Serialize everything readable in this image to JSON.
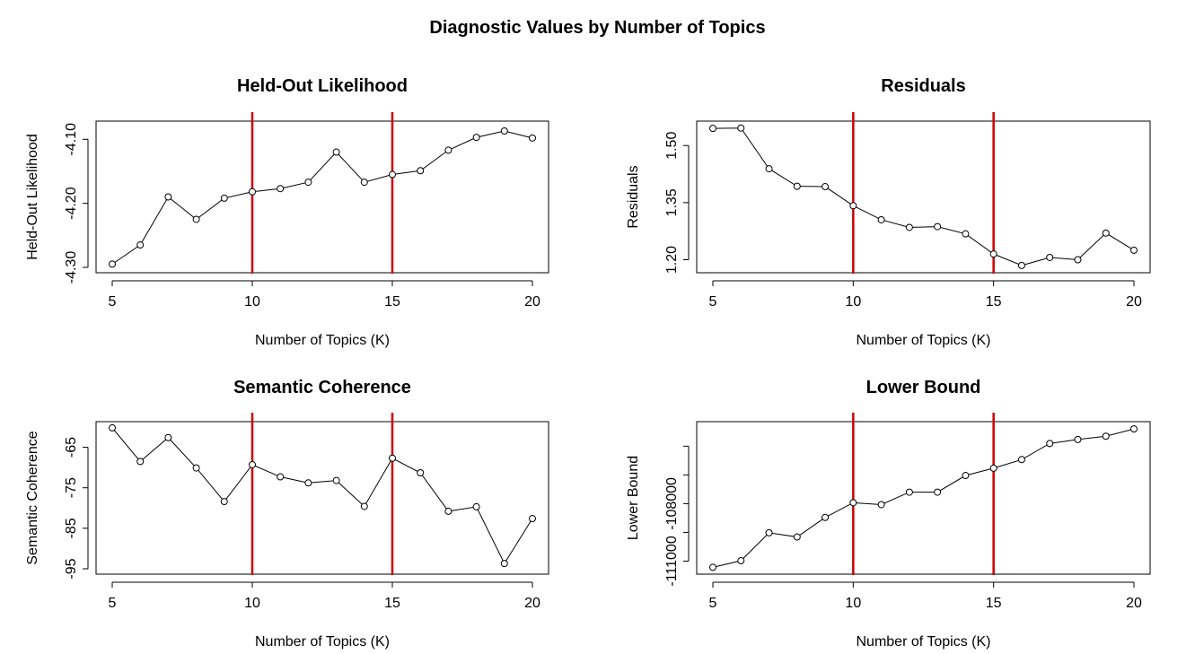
{
  "figure": {
    "title": "Diagnostic Values by Number of Topics"
  },
  "chart_data": [
    {
      "type": "line",
      "title": "Held-Out Likelihood",
      "xlabel": "Number of Topics (K)",
      "ylabel": "Held-Out Likelihood",
      "x": [
        5,
        6,
        7,
        8,
        9,
        10,
        11,
        12,
        13,
        14,
        15,
        16,
        17,
        18,
        19,
        20
      ],
      "series": [
        {
          "values": [
            -4.295,
            -4.265,
            -4.19,
            -4.225,
            -4.192,
            -4.182,
            -4.177,
            -4.167,
            -4.12,
            -4.167,
            -4.155,
            -4.149,
            -4.117,
            -4.097,
            -4.087,
            -4.098
          ]
        }
      ],
      "xlim": [
        5,
        20
      ],
      "ylim": [
        -4.3,
        -4.08
      ],
      "xticks": [
        5,
        10,
        15,
        20
      ],
      "xtick_labels": [
        "5",
        "10",
        "15",
        "20"
      ],
      "yticks": [
        -4.3,
        -4.2,
        -4.1
      ],
      "ytick_labels": [
        "-4.30",
        "-4.20",
        "-4.10"
      ],
      "vlines": [
        10,
        15
      ],
      "vline_color": "#cc0000",
      "line_color": "#000000"
    },
    {
      "type": "line",
      "title": "Residuals",
      "xlabel": "Number of Topics (K)",
      "ylabel": "Residuals",
      "x": [
        5,
        6,
        7,
        8,
        9,
        10,
        11,
        12,
        13,
        14,
        15,
        16,
        17,
        18,
        19,
        20
      ],
      "series": [
        {
          "values": [
            1.545,
            1.546,
            1.439,
            1.393,
            1.392,
            1.342,
            1.305,
            1.285,
            1.287,
            1.268,
            1.215,
            1.185,
            1.206,
            1.2,
            1.27,
            1.225
          ]
        }
      ],
      "xlim": [
        5,
        20
      ],
      "ylim": [
        1.18,
        1.55
      ],
      "xticks": [
        5,
        10,
        15,
        20
      ],
      "xtick_labels": [
        "5",
        "10",
        "15",
        "20"
      ],
      "yticks": [
        1.2,
        1.35,
        1.5
      ],
      "ytick_labels": [
        "1.20",
        "1.35",
        "1.50"
      ],
      "vlines": [
        10,
        15
      ],
      "vline_color": "#cc0000",
      "line_color": "#000000"
    },
    {
      "type": "line",
      "title": "Semantic Coherence",
      "xlabel": "Number of Topics (K)",
      "ylabel": "Semantic Coherence",
      "x": [
        5,
        6,
        7,
        8,
        9,
        10,
        11,
        12,
        13,
        14,
        15,
        16,
        17,
        18,
        19,
        20
      ],
      "series": [
        {
          "values": [
            -60.2,
            -68.5,
            -62.6,
            -70.1,
            -78.4,
            -69.3,
            -72.3,
            -73.8,
            -73.2,
            -79.6,
            -67.7,
            -71.3,
            -80.8,
            -79.7,
            -93.7,
            -82.6
          ]
        }
      ],
      "xlim": [
        5,
        20
      ],
      "ylim": [
        -95,
        -60
      ],
      "xticks": [
        5,
        10,
        15,
        20
      ],
      "xtick_labels": [
        "5",
        "10",
        "15",
        "20"
      ],
      "yticks": [
        -95,
        -85,
        -75,
        -65
      ],
      "ytick_labels": [
        "-95",
        "-85",
        "-75",
        "-65"
      ],
      "vlines": [
        10,
        15
      ],
      "vline_color": "#cc0000",
      "line_color": "#000000"
    },
    {
      "type": "line",
      "title": "Lower Bound",
      "xlabel": "Number of Topics (K)",
      "ylabel": "Lower Bound",
      "x": [
        5,
        6,
        7,
        8,
        9,
        10,
        11,
        12,
        13,
        14,
        15,
        16,
        17,
        18,
        19,
        20
      ],
      "series": [
        {
          "values": [
            -111325,
            -110980,
            -109520,
            -109740,
            -108720,
            -107950,
            -108050,
            -107400,
            -107400,
            -106530,
            -106150,
            -105700,
            -104860,
            -104650,
            -104480,
            -104100
          ]
        }
      ],
      "xlim": [
        5,
        20
      ],
      "ylim": [
        -111400,
        -104000
      ],
      "xticks": [
        5,
        10,
        15,
        20
      ],
      "xtick_labels": [
        "5",
        "10",
        "15",
        "20"
      ],
      "yticks": [
        -111000,
        -109500,
        -108000,
        -106500,
        -105000
      ],
      "ytick_labels": [
        "-111000",
        "",
        "-108000",
        "",
        ""
      ],
      "vlines": [
        10,
        15
      ],
      "vline_color": "#cc0000",
      "line_color": "#000000"
    }
  ]
}
